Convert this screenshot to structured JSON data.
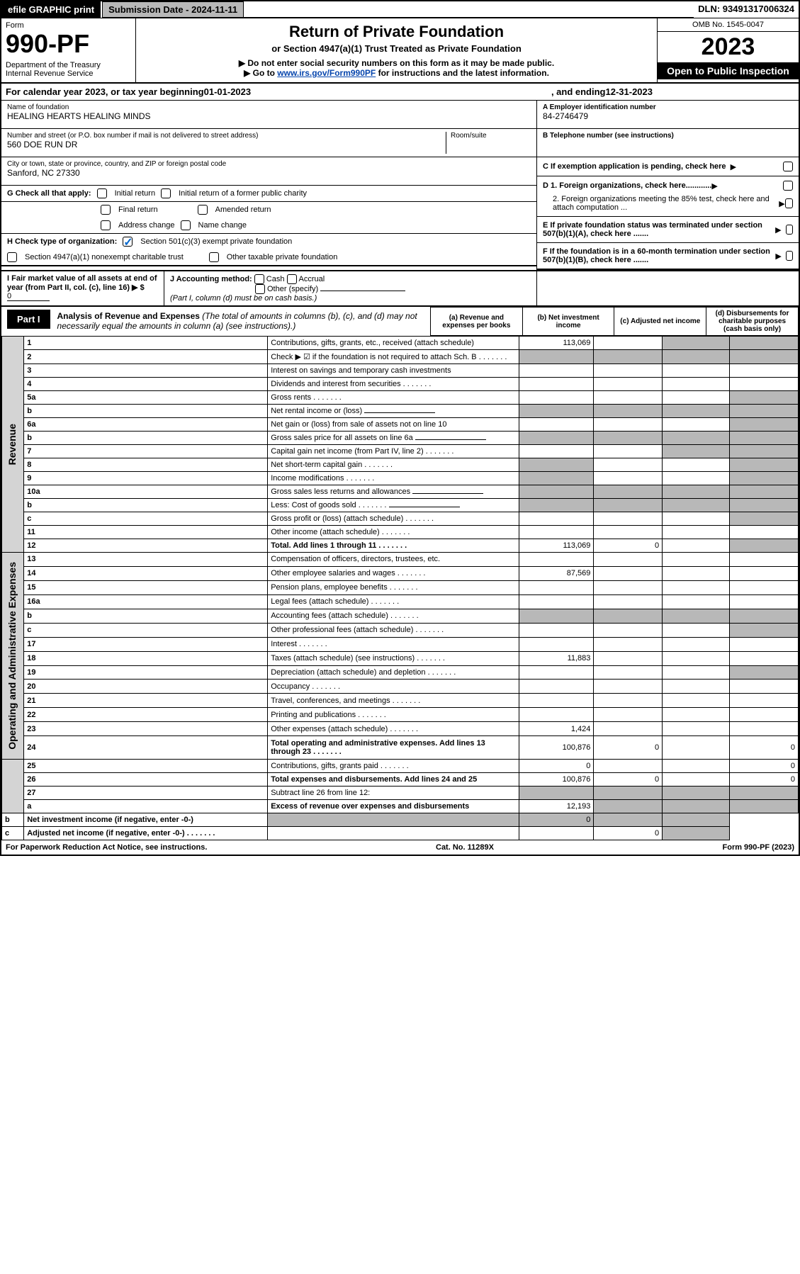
{
  "topbar": {
    "efile": "efile GRAPHIC print",
    "sub": "Submission Date - 2024-11-11",
    "dln": "DLN: 93491317006324"
  },
  "header": {
    "form": "Form",
    "no": "990-PF",
    "dept": "Department of the Treasury",
    "irs": "Internal Revenue Service",
    "title": "Return of Private Foundation",
    "sub": "or Section 4947(a)(1) Trust Treated as Private Foundation",
    "instr1": "▶ Do not enter social security numbers on this form as it may be made public.",
    "instr2a": "▶ Go to ",
    "link": "www.irs.gov/Form990PF",
    "instr2b": " for instructions and the latest information.",
    "omb": "OMB No. 1545-0047",
    "year": "2023",
    "open": "Open to Public Inspection"
  },
  "cal": {
    "pre": "For calendar year 2023, or tax year beginning ",
    "start": "01-01-2023",
    "mid": ", and ending ",
    "end": "12-31-2023"
  },
  "entity": {
    "name_lbl": "Name of foundation",
    "name": "HEALING HEARTS HEALING MINDS",
    "addr_lbl": "Number and street (or P.O. box number if mail is not delivered to street address)",
    "addr": "560 DOE RUN DR",
    "room_lbl": "Room/suite",
    "city_lbl": "City or town, state or province, country, and ZIP or foreign postal code",
    "city": "Sanford, NC  27330",
    "ein_lbl": "A Employer identification number",
    "ein": "84-2746479",
    "tel_lbl": "B Telephone number (see instructions)",
    "c": "C If exemption application is pending, check here",
    "d1": "D 1. Foreign organizations, check here............",
    "d2": "2. Foreign organizations meeting the 85% test, check here and attach computation ...",
    "e": "E  If private foundation status was terminated under section 507(b)(1)(A), check here .......",
    "f": "F  If the foundation is in a 60-month termination under section 507(b)(1)(B), check here ......."
  },
  "g": {
    "lbl": "G Check all that apply:",
    "o1": "Initial return",
    "o2": "Initial return of a former public charity",
    "o3": "Final return",
    "o4": "Amended return",
    "o5": "Address change",
    "o6": "Name change"
  },
  "h": {
    "lbl": "H Check type of organization:",
    "o1": "Section 501(c)(3) exempt private foundation",
    "o2": "Section 4947(a)(1) nonexempt charitable trust",
    "o3": "Other taxable private foundation"
  },
  "i": {
    "lbl": "I Fair market value of all assets at end of year (from Part II, col. (c), line 16) ▶ $",
    "val": "0"
  },
  "j": {
    "lbl": "J Accounting method:",
    "o1": "Cash",
    "o2": "Accrual",
    "o3": "Other (specify)",
    "note": "(Part I, column (d) must be on cash basis.)"
  },
  "part1": {
    "tag": "Part I",
    "title": "Analysis of Revenue and Expenses",
    "sub": "(The total of amounts in columns (b), (c), and (d) may not necessarily equal the amounts in column (a) (see instructions).)"
  },
  "cols": {
    "a": "(a)",
    "at": "Revenue and expenses per books",
    "b": "(b)",
    "bt": "Net investment income",
    "c": "(c)",
    "ct": "Adjusted net income",
    "d": "(d)",
    "dt": "Disbursements for charitable purposes (cash basis only)"
  },
  "sides": {
    "rev": "Revenue",
    "exp": "Operating and Administrative Expenses"
  },
  "rows": [
    {
      "n": "1",
      "d": "Contributions, gifts, grants, etc., received (attach schedule)",
      "a": "113,069"
    },
    {
      "n": "2",
      "d": "Check ▶ ☑ if the foundation is not required to attach Sch. B",
      "dots": true
    },
    {
      "n": "3",
      "d": "Interest on savings and temporary cash investments"
    },
    {
      "n": "4",
      "d": "Dividends and interest from securities",
      "dots": true
    },
    {
      "n": "5a",
      "d": "Gross rents",
      "dots": true
    },
    {
      "n": "b",
      "d": "Net rental income or (loss)",
      "under": true
    },
    {
      "n": "6a",
      "d": "Net gain or (loss) from sale of assets not on line 10"
    },
    {
      "n": "b",
      "d": "Gross sales price for all assets on line 6a",
      "under": true
    },
    {
      "n": "7",
      "d": "Capital gain net income (from Part IV, line 2)",
      "dots": true
    },
    {
      "n": "8",
      "d": "Net short-term capital gain",
      "dots": true
    },
    {
      "n": "9",
      "d": "Income modifications",
      "dots": true
    },
    {
      "n": "10a",
      "d": "Gross sales less returns and allowances",
      "under": true
    },
    {
      "n": "b",
      "d": "Less: Cost of goods sold",
      "dots": true,
      "under": true
    },
    {
      "n": "c",
      "d": "Gross profit or (loss) (attach schedule)",
      "dots": true
    },
    {
      "n": "11",
      "d": "Other income (attach schedule)",
      "dots": true
    },
    {
      "n": "12",
      "d": "Total. Add lines 1 through 11",
      "dots": true,
      "b": true,
      "a": "113,069",
      "bv": "0"
    },
    {
      "n": "13",
      "d": "Compensation of officers, directors, trustees, etc."
    },
    {
      "n": "14",
      "d": "Other employee salaries and wages",
      "dots": true,
      "a": "87,569"
    },
    {
      "n": "15",
      "d": "Pension plans, employee benefits",
      "dots": true
    },
    {
      "n": "16a",
      "d": "Legal fees (attach schedule)",
      "dots": true
    },
    {
      "n": "b",
      "d": "Accounting fees (attach schedule)",
      "dots": true
    },
    {
      "n": "c",
      "d": "Other professional fees (attach schedule)",
      "dots": true
    },
    {
      "n": "17",
      "d": "Interest",
      "dots": true
    },
    {
      "n": "18",
      "d": "Taxes (attach schedule) (see instructions)",
      "dots": true,
      "a": "11,883"
    },
    {
      "n": "19",
      "d": "Depreciation (attach schedule) and depletion",
      "dots": true
    },
    {
      "n": "20",
      "d": "Occupancy",
      "dots": true
    },
    {
      "n": "21",
      "d": "Travel, conferences, and meetings",
      "dots": true
    },
    {
      "n": "22",
      "d": "Printing and publications",
      "dots": true
    },
    {
      "n": "23",
      "d": "Other expenses (attach schedule)",
      "dots": true,
      "a": "1,424"
    },
    {
      "n": "24",
      "d": "Total operating and administrative expenses. Add lines 13 through 23",
      "dots": true,
      "b": true,
      "a": "100,876",
      "bv": "0",
      "dv": "0"
    },
    {
      "n": "25",
      "d": "Contributions, gifts, grants paid",
      "dots": true,
      "a": "0",
      "dv": "0"
    },
    {
      "n": "26",
      "d": "Total expenses and disbursements. Add lines 24 and 25",
      "b": true,
      "a": "100,876",
      "bv": "0",
      "dv": "0"
    },
    {
      "n": "27",
      "d": "Subtract line 26 from line 12:"
    },
    {
      "n": "a",
      "d": "Excess of revenue over expenses and disbursements",
      "b": true,
      "a": "12,193"
    },
    {
      "n": "b",
      "d": "Net investment income (if negative, enter -0-)",
      "b": true,
      "bv": "0"
    },
    {
      "n": "c",
      "d": "Adjusted net income (if negative, enter -0-)",
      "dots": true,
      "b": true,
      "cv": "0"
    }
  ],
  "footer": {
    "l": "For Paperwork Reduction Act Notice, see instructions.",
    "c": "Cat. No. 11289X",
    "r": "Form 990-PF (2023)"
  }
}
